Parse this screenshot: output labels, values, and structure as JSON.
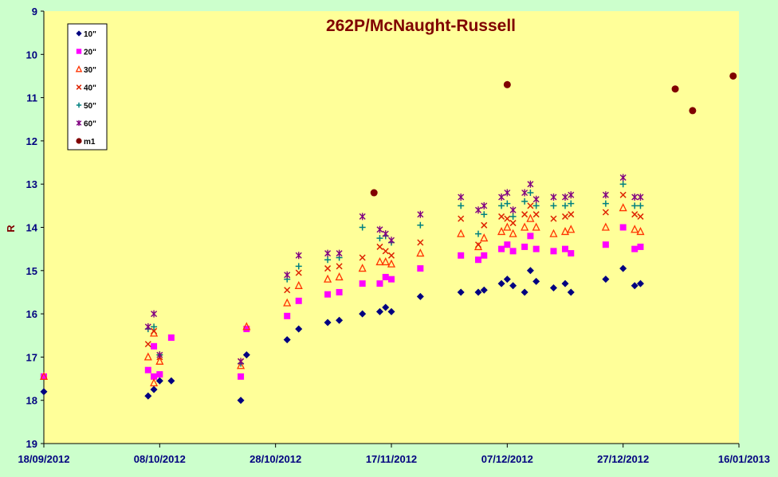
{
  "chart_data": {
    "type": "scatter",
    "title": "262P/McNaught-Russell",
    "xlabel": "",
    "ylabel": "R",
    "y_inverted": true,
    "ylim": [
      9,
      19
    ],
    "y_ticks": [
      "9",
      "10",
      "11",
      "12",
      "13",
      "14",
      "15",
      "16",
      "17",
      "18",
      "19"
    ],
    "xlim": [
      "2012-09-18",
      "2013-01-16"
    ],
    "x_ticks": [
      "18/09/2012",
      "08/10/2012",
      "28/10/2012",
      "17/11/2012",
      "07/12/2012",
      "27/12/2012",
      "16/01/2013"
    ],
    "grid": false,
    "legend_position": "top-left",
    "plot_background": "#ffff99",
    "page_background": "#ccffcc",
    "series": [
      {
        "name": "10\"",
        "marker": "diamond",
        "color": "#000080",
        "points": [
          {
            "x": "2012-09-18",
            "y": 17.8
          },
          {
            "x": "2012-10-06",
            "y": 17.9
          },
          {
            "x": "2012-10-07",
            "y": 17.75
          },
          {
            "x": "2012-10-08",
            "y": 17.55
          },
          {
            "x": "2012-10-10",
            "y": 17.55
          },
          {
            "x": "2012-10-22",
            "y": 18.0
          },
          {
            "x": "2012-10-23",
            "y": 16.95
          },
          {
            "x": "2012-10-30",
            "y": 16.6
          },
          {
            "x": "2012-11-01",
            "y": 16.35
          },
          {
            "x": "2012-11-06",
            "y": 16.2
          },
          {
            "x": "2012-11-08",
            "y": 16.15
          },
          {
            "x": "2012-11-12",
            "y": 16.0
          },
          {
            "x": "2012-11-15",
            "y": 15.95
          },
          {
            "x": "2012-11-16",
            "y": 15.85
          },
          {
            "x": "2012-11-17",
            "y": 15.95
          },
          {
            "x": "2012-11-22",
            "y": 15.6
          },
          {
            "x": "2012-11-29",
            "y": 15.5
          },
          {
            "x": "2012-12-02",
            "y": 15.5
          },
          {
            "x": "2012-12-03",
            "y": 15.45
          },
          {
            "x": "2012-12-06",
            "y": 15.3
          },
          {
            "x": "2012-12-07",
            "y": 15.2
          },
          {
            "x": "2012-12-08",
            "y": 15.35
          },
          {
            "x": "2012-12-10",
            "y": 15.5
          },
          {
            "x": "2012-12-11",
            "y": 15.0
          },
          {
            "x": "2012-12-12",
            "y": 15.25
          },
          {
            "x": "2012-12-15",
            "y": 15.4
          },
          {
            "x": "2012-12-17",
            "y": 15.3
          },
          {
            "x": "2012-12-18",
            "y": 15.5
          },
          {
            "x": "2012-12-24",
            "y": 15.2
          },
          {
            "x": "2012-12-27",
            "y": 14.95
          },
          {
            "x": "2012-12-29",
            "y": 15.35
          },
          {
            "x": "2012-12-30",
            "y": 15.3
          }
        ]
      },
      {
        "name": "20\"",
        "marker": "square",
        "color": "#ff00ff",
        "points": [
          {
            "x": "2012-09-18",
            "y": 17.45
          },
          {
            "x": "2012-10-06",
            "y": 17.3
          },
          {
            "x": "2012-10-07",
            "y": 16.75
          },
          {
            "x": "2012-10-07",
            "y": 17.45
          },
          {
            "x": "2012-10-08",
            "y": 17.4
          },
          {
            "x": "2012-10-10",
            "y": 16.55
          },
          {
            "x": "2012-10-22",
            "y": 17.45
          },
          {
            "x": "2012-10-23",
            "y": 16.35
          },
          {
            "x": "2012-10-30",
            "y": 16.05
          },
          {
            "x": "2012-11-01",
            "y": 15.7
          },
          {
            "x": "2012-11-06",
            "y": 15.55
          },
          {
            "x": "2012-11-08",
            "y": 15.5
          },
          {
            "x": "2012-11-12",
            "y": 15.3
          },
          {
            "x": "2012-11-15",
            "y": 15.3
          },
          {
            "x": "2012-11-16",
            "y": 15.15
          },
          {
            "x": "2012-11-17",
            "y": 15.2
          },
          {
            "x": "2012-11-22",
            "y": 14.95
          },
          {
            "x": "2012-11-29",
            "y": 14.65
          },
          {
            "x": "2012-12-02",
            "y": 14.75
          },
          {
            "x": "2012-12-03",
            "y": 14.65
          },
          {
            "x": "2012-12-06",
            "y": 14.5
          },
          {
            "x": "2012-12-07",
            "y": 14.4
          },
          {
            "x": "2012-12-08",
            "y": 14.55
          },
          {
            "x": "2012-12-10",
            "y": 14.45
          },
          {
            "x": "2012-12-11",
            "y": 14.2
          },
          {
            "x": "2012-12-12",
            "y": 14.5
          },
          {
            "x": "2012-12-15",
            "y": 14.55
          },
          {
            "x": "2012-12-17",
            "y": 14.5
          },
          {
            "x": "2012-12-18",
            "y": 14.6
          },
          {
            "x": "2012-12-24",
            "y": 14.4
          },
          {
            "x": "2012-12-27",
            "y": 14.0
          },
          {
            "x": "2012-12-29",
            "y": 14.5
          },
          {
            "x": "2012-12-30",
            "y": 14.45
          }
        ]
      },
      {
        "name": "30\"",
        "marker": "triangle",
        "color": "#ff3300",
        "points": [
          {
            "x": "2012-09-18",
            "y": 17.45
          },
          {
            "x": "2012-10-06",
            "y": 17.0
          },
          {
            "x": "2012-10-07",
            "y": 16.45
          },
          {
            "x": "2012-10-07",
            "y": 17.6
          },
          {
            "x": "2012-10-08",
            "y": 17.1
          },
          {
            "x": "2012-10-22",
            "y": 17.2
          },
          {
            "x": "2012-10-23",
            "y": 16.3
          },
          {
            "x": "2012-10-30",
            "y": 15.75
          },
          {
            "x": "2012-11-01",
            "y": 15.35
          },
          {
            "x": "2012-11-06",
            "y": 15.2
          },
          {
            "x": "2012-11-08",
            "y": 15.15
          },
          {
            "x": "2012-11-12",
            "y": 14.95
          },
          {
            "x": "2012-11-15",
            "y": 14.8
          },
          {
            "x": "2012-11-16",
            "y": 14.8
          },
          {
            "x": "2012-11-17",
            "y": 14.85
          },
          {
            "x": "2012-11-22",
            "y": 14.6
          },
          {
            "x": "2012-11-29",
            "y": 14.15
          },
          {
            "x": "2012-12-02",
            "y": 14.45
          },
          {
            "x": "2012-12-03",
            "y": 14.25
          },
          {
            "x": "2012-12-06",
            "y": 14.1
          },
          {
            "x": "2012-12-07",
            "y": 14.0
          },
          {
            "x": "2012-12-08",
            "y": 14.15
          },
          {
            "x": "2012-12-10",
            "y": 14.0
          },
          {
            "x": "2012-12-11",
            "y": 13.8
          },
          {
            "x": "2012-12-12",
            "y": 14.0
          },
          {
            "x": "2012-12-15",
            "y": 14.15
          },
          {
            "x": "2012-12-17",
            "y": 14.1
          },
          {
            "x": "2012-12-18",
            "y": 14.05
          },
          {
            "x": "2012-12-24",
            "y": 14.0
          },
          {
            "x": "2012-12-27",
            "y": 13.55
          },
          {
            "x": "2012-12-29",
            "y": 14.05
          },
          {
            "x": "2012-12-30",
            "y": 14.1
          }
        ]
      },
      {
        "name": "40\"",
        "marker": "x",
        "color": "#dd2200",
        "points": [
          {
            "x": "2012-10-06",
            "y": 16.7
          },
          {
            "x": "2012-10-07",
            "y": 16.4
          },
          {
            "x": "2012-10-08",
            "y": 17.0
          },
          {
            "x": "2012-10-22",
            "y": 17.1
          },
          {
            "x": "2012-10-30",
            "y": 15.45
          },
          {
            "x": "2012-11-01",
            "y": 15.05
          },
          {
            "x": "2012-11-06",
            "y": 14.95
          },
          {
            "x": "2012-11-08",
            "y": 14.9
          },
          {
            "x": "2012-11-12",
            "y": 14.7
          },
          {
            "x": "2012-11-15",
            "y": 14.45
          },
          {
            "x": "2012-11-16",
            "y": 14.55
          },
          {
            "x": "2012-11-17",
            "y": 14.65
          },
          {
            "x": "2012-11-22",
            "y": 14.35
          },
          {
            "x": "2012-11-29",
            "y": 13.8
          },
          {
            "x": "2012-12-02",
            "y": 14.4
          },
          {
            "x": "2012-12-03",
            "y": 13.95
          },
          {
            "x": "2012-12-06",
            "y": 13.75
          },
          {
            "x": "2012-12-07",
            "y": 13.8
          },
          {
            "x": "2012-12-08",
            "y": 13.9
          },
          {
            "x": "2012-12-10",
            "y": 13.7
          },
          {
            "x": "2012-12-11",
            "y": 13.5
          },
          {
            "x": "2012-12-12",
            "y": 13.7
          },
          {
            "x": "2012-12-15",
            "y": 13.8
          },
          {
            "x": "2012-12-17",
            "y": 13.75
          },
          {
            "x": "2012-12-18",
            "y": 13.7
          },
          {
            "x": "2012-12-24",
            "y": 13.65
          },
          {
            "x": "2012-12-27",
            "y": 13.25
          },
          {
            "x": "2012-12-29",
            "y": 13.7
          },
          {
            "x": "2012-12-30",
            "y": 13.75
          }
        ]
      },
      {
        "name": "50\"",
        "marker": "plus",
        "color": "#008080",
        "points": [
          {
            "x": "2012-10-06",
            "y": 16.35
          },
          {
            "x": "2012-10-07",
            "y": 16.3
          },
          {
            "x": "2012-10-08",
            "y": 16.95
          },
          {
            "x": "2012-10-22",
            "y": 17.15
          },
          {
            "x": "2012-10-30",
            "y": 15.2
          },
          {
            "x": "2012-11-01",
            "y": 14.9
          },
          {
            "x": "2012-11-06",
            "y": 14.75
          },
          {
            "x": "2012-11-08",
            "y": 14.7
          },
          {
            "x": "2012-11-12",
            "y": 14.0
          },
          {
            "x": "2012-11-15",
            "y": 14.25
          },
          {
            "x": "2012-11-16",
            "y": 14.2
          },
          {
            "x": "2012-11-17",
            "y": 14.35
          },
          {
            "x": "2012-11-22",
            "y": 13.95
          },
          {
            "x": "2012-11-29",
            "y": 13.5
          },
          {
            "x": "2012-12-02",
            "y": 14.15
          },
          {
            "x": "2012-12-03",
            "y": 13.7
          },
          {
            "x": "2012-12-06",
            "y": 13.5
          },
          {
            "x": "2012-12-07",
            "y": 13.45
          },
          {
            "x": "2012-12-08",
            "y": 13.75
          },
          {
            "x": "2012-12-10",
            "y": 13.4
          },
          {
            "x": "2012-12-11",
            "y": 13.2
          },
          {
            "x": "2012-12-12",
            "y": 13.5
          },
          {
            "x": "2012-12-15",
            "y": 13.5
          },
          {
            "x": "2012-12-17",
            "y": 13.5
          },
          {
            "x": "2012-12-18",
            "y": 13.45
          },
          {
            "x": "2012-12-24",
            "y": 13.45
          },
          {
            "x": "2012-12-27",
            "y": 13.0
          },
          {
            "x": "2012-12-29",
            "y": 13.5
          },
          {
            "x": "2012-12-30",
            "y": 13.5
          }
        ]
      },
      {
        "name": "60\"",
        "marker": "star",
        "color": "#800080",
        "points": [
          {
            "x": "2012-10-06",
            "y": 16.3
          },
          {
            "x": "2012-10-07",
            "y": 16.0
          },
          {
            "x": "2012-10-08",
            "y": 16.95
          },
          {
            "x": "2012-10-22",
            "y": 17.1
          },
          {
            "x": "2012-10-30",
            "y": 15.1
          },
          {
            "x": "2012-11-01",
            "y": 14.65
          },
          {
            "x": "2012-11-06",
            "y": 14.6
          },
          {
            "x": "2012-11-08",
            "y": 14.6
          },
          {
            "x": "2012-11-12",
            "y": 13.75
          },
          {
            "x": "2012-11-15",
            "y": 14.05
          },
          {
            "x": "2012-11-16",
            "y": 14.15
          },
          {
            "x": "2012-11-17",
            "y": 14.3
          },
          {
            "x": "2012-11-22",
            "y": 13.7
          },
          {
            "x": "2012-11-29",
            "y": 13.3
          },
          {
            "x": "2012-12-02",
            "y": 13.6
          },
          {
            "x": "2012-12-03",
            "y": 13.5
          },
          {
            "x": "2012-12-06",
            "y": 13.3
          },
          {
            "x": "2012-12-07",
            "y": 13.2
          },
          {
            "x": "2012-12-08",
            "y": 13.6
          },
          {
            "x": "2012-12-10",
            "y": 13.2
          },
          {
            "x": "2012-12-11",
            "y": 13.0
          },
          {
            "x": "2012-12-12",
            "y": 13.35
          },
          {
            "x": "2012-12-15",
            "y": 13.3
          },
          {
            "x": "2012-12-17",
            "y": 13.3
          },
          {
            "x": "2012-12-18",
            "y": 13.25
          },
          {
            "x": "2012-12-24",
            "y": 13.25
          },
          {
            "x": "2012-12-27",
            "y": 12.85
          },
          {
            "x": "2012-12-29",
            "y": 13.3
          },
          {
            "x": "2012-12-30",
            "y": 13.3
          }
        ]
      },
      {
        "name": "m1",
        "marker": "circle",
        "color": "#800000",
        "points": [
          {
            "x": "2012-11-14",
            "y": 13.2
          },
          {
            "x": "2012-12-07",
            "y": 10.7
          },
          {
            "x": "2013-01-05",
            "y": 10.8
          },
          {
            "x": "2013-01-08",
            "y": 11.3
          },
          {
            "x": "2013-01-15",
            "y": 10.5
          }
        ]
      }
    ]
  }
}
